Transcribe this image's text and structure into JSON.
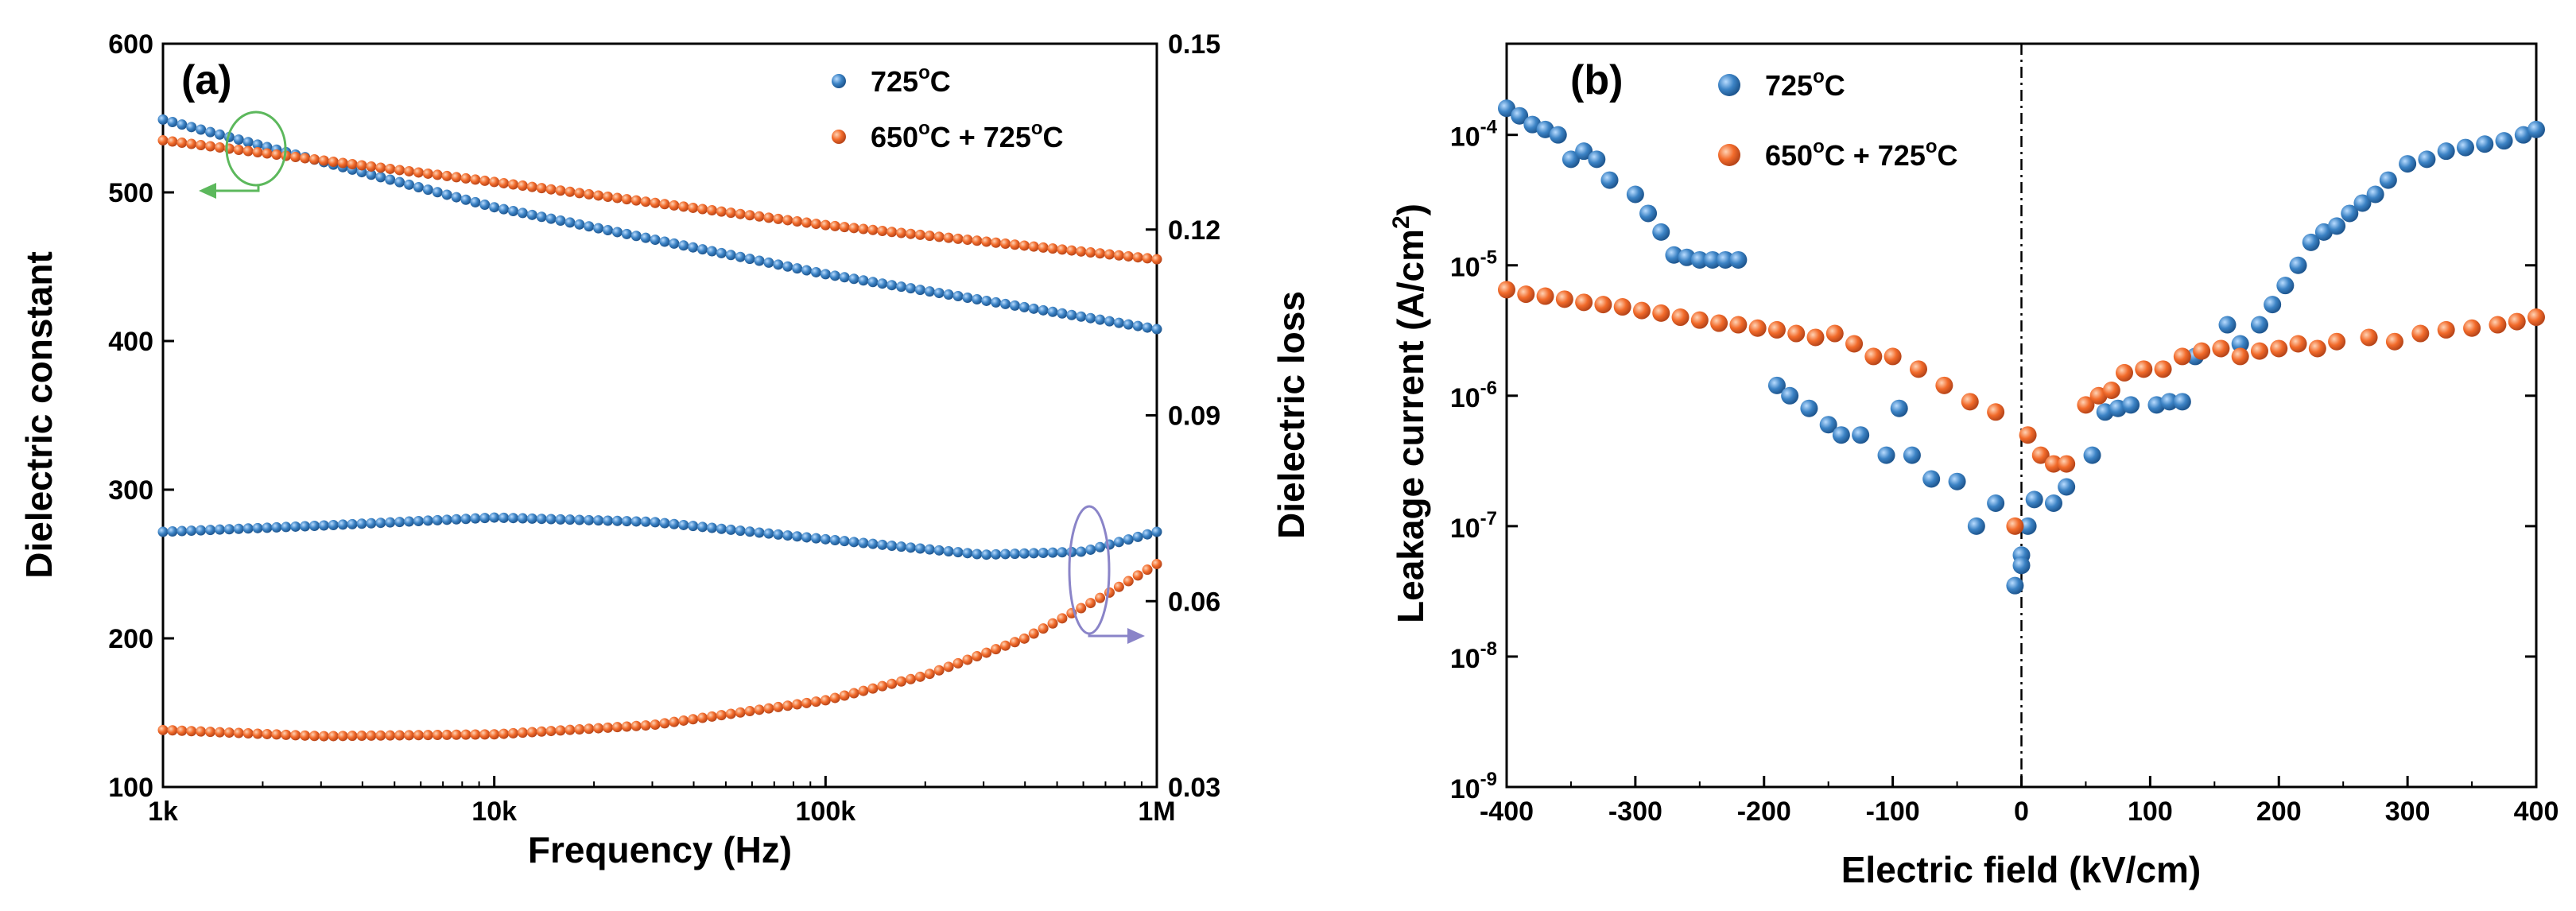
{
  "chart_data": [
    {
      "type": "scatter",
      "panel_label": "(a)",
      "title": "",
      "xlabel": "Frequency (Hz)",
      "ylabel": "Dielectric constant",
      "y2label": "Dielectric loss",
      "xscale": "log",
      "xlim": [
        1000,
        1000000
      ],
      "ylim": [
        100,
        600
      ],
      "y2lim": [
        0.03,
        0.15
      ],
      "x_ticks": [
        {
          "value": 1000,
          "label": "1k"
        },
        {
          "value": 10000,
          "label": "10k"
        },
        {
          "value": 100000,
          "label": "100k"
        },
        {
          "value": 1000000,
          "label": "1M"
        }
      ],
      "y_ticks": [
        {
          "value": 100,
          "label": "100"
        },
        {
          "value": 200,
          "label": "200"
        },
        {
          "value": 300,
          "label": "300"
        },
        {
          "value": 400,
          "label": "400"
        },
        {
          "value": 500,
          "label": "500"
        },
        {
          "value": 600,
          "label": "600"
        }
      ],
      "y2_ticks": [
        {
          "value": 0.03,
          "label": "0.03"
        },
        {
          "value": 0.06,
          "label": "0.06"
        },
        {
          "value": 0.09,
          "label": "0.09"
        },
        {
          "value": 0.12,
          "label": "0.12"
        },
        {
          "value": 0.15,
          "label": "0.15"
        }
      ],
      "legend": [
        {
          "name": "725",
          "degree": "o",
          "suffix": "C",
          "color": "#3c83c5"
        },
        {
          "name": "650",
          "degree": "o",
          "suffix": "C + 725",
          "degree2": "o",
          "suffix2": "C",
          "color": "#f26b2b"
        }
      ],
      "legend_position": "top-right",
      "series": [
        {
          "name": "725°C dielectric constant",
          "axis": "left",
          "color": "#3c83c5",
          "x": [
            1000,
            10000,
            100000,
            1000000
          ],
          "y": [
            549,
            490,
            445,
            408
          ]
        },
        {
          "name": "650°C + 725°C dielectric constant",
          "axis": "left",
          "color": "#f26b2b",
          "x": [
            1000,
            10000,
            100000,
            1000000
          ],
          "y": [
            535,
            507,
            478,
            455
          ]
        },
        {
          "name": "725°C dielectric loss",
          "axis": "right",
          "color": "#3c83c5",
          "x": [
            1000,
            3000,
            10000,
            30000,
            100000,
            300000,
            600000,
            1000000
          ],
          "y": [
            0.0712,
            0.0722,
            0.0735,
            0.0728,
            0.07,
            0.0675,
            0.068,
            0.0712
          ]
        },
        {
          "name": "650°C + 725°C dielectric loss",
          "axis": "right",
          "color": "#f26b2b",
          "x": [
            1000,
            3000,
            10000,
            30000,
            100000,
            200000,
            400000,
            700000,
            1000000
          ],
          "y": [
            0.0392,
            0.0382,
            0.0385,
            0.04,
            0.044,
            0.048,
            0.054,
            0.061,
            0.066
          ]
        }
      ],
      "markers": [
        {
          "name": "left-axis-marker",
          "color": "#5cb85c",
          "target_axis": "left"
        },
        {
          "name": "right-axis-marker",
          "color": "#8a84c8",
          "target_axis": "right"
        }
      ]
    },
    {
      "type": "scatter",
      "panel_label": "(b)",
      "title": "",
      "xlabel": "Electric field (kV/cm)",
      "ylabel": "Leakage current (A/cm",
      "ylabel_sup": "2",
      "ylabel_end": ")",
      "xscale": "linear",
      "yscale": "log",
      "xlim": [
        -400,
        400
      ],
      "ylim": [
        1e-09,
        0.0005
      ],
      "x_ticks": [
        {
          "value": -400,
          "label": "-400"
        },
        {
          "value": -300,
          "label": "-300"
        },
        {
          "value": -200,
          "label": "-200"
        },
        {
          "value": -100,
          "label": "-100"
        },
        {
          "value": 0,
          "label": "0"
        },
        {
          "value": 100,
          "label": "100"
        },
        {
          "value": 200,
          "label": "200"
        },
        {
          "value": 300,
          "label": "300"
        },
        {
          "value": 400,
          "label": "400"
        }
      ],
      "y_ticks": [
        {
          "value": 1e-09,
          "base": "10",
          "exp": "-9"
        },
        {
          "value": 1e-08,
          "base": "10",
          "exp": "-8"
        },
        {
          "value": 1e-07,
          "base": "10",
          "exp": "-7"
        },
        {
          "value": 1e-06,
          "base": "10",
          "exp": "-6"
        },
        {
          "value": 1e-05,
          "base": "10",
          "exp": "-5"
        },
        {
          "value": 0.0001,
          "base": "10",
          "exp": "-4"
        }
      ],
      "legend": [
        {
          "name": "725",
          "degree": "o",
          "suffix": "C",
          "color": "#3c83c5"
        },
        {
          "name": "650",
          "degree": "o",
          "suffix": "C + 725",
          "degree2": "o",
          "suffix2": "C",
          "color": "#f26b2b"
        }
      ],
      "legend_position": "top-left",
      "zero_line": true,
      "series": [
        {
          "name": "725°C",
          "color": "#3c83c5",
          "x": [
            -400,
            -390,
            -380,
            -370,
            -360,
            -350,
            -340,
            -330,
            -320,
            -300,
            -290,
            -280,
            -270,
            -260,
            -250,
            -240,
            -230,
            -220,
            -190,
            -180,
            -165,
            -150,
            -140,
            -125,
            -105,
            -95,
            -85,
            -70,
            -50,
            -35,
            -20,
            -5,
            0,
            0,
            5,
            10,
            25
          ],
          "y": [
            0.00016,
            0.00014,
            0.00012,
            0.00011,
            0.0001,
            6.5e-05,
            7.5e-05,
            6.5e-05,
            4.5e-05,
            3.5e-05,
            2.5e-05,
            1.8e-05,
            1.2e-05,
            1.15e-05,
            1.1e-05,
            1.1e-05,
            1.1e-05,
            1.1e-05,
            1.2e-06,
            1e-06,
            8e-07,
            6e-07,
            5e-07,
            5e-07,
            3.5e-07,
            8e-07,
            3.5e-07,
            2.3e-07,
            2.2e-07,
            1e-07,
            1.5e-07,
            3.5e-08,
            6e-08,
            5e-08,
            1e-07,
            1.6e-07,
            1.5e-07
          ],
          "x2": [
            35,
            55,
            65,
            75,
            85,
            105,
            115,
            125,
            135,
            160,
            170,
            185,
            195,
            205,
            215,
            225,
            235,
            245,
            255,
            265,
            275,
            285,
            300,
            315,
            330,
            345,
            360,
            375,
            390,
            400
          ],
          "y2": [
            2e-07,
            3.5e-07,
            7.5e-07,
            8e-07,
            8.5e-07,
            8.5e-07,
            9e-07,
            9e-07,
            2e-06,
            3.5e-06,
            2.5e-06,
            3.5e-06,
            5e-06,
            7e-06,
            1e-05,
            1.5e-05,
            1.8e-05,
            2e-05,
            2.5e-05,
            3e-05,
            3.5e-05,
            4.5e-05,
            6e-05,
            6.5e-05,
            7.5e-05,
            8e-05,
            8.5e-05,
            9e-05,
            0.0001,
            0.00011
          ]
        },
        {
          "name": "650°C + 725°C",
          "color": "#f26b2b",
          "x": [
            -400,
            -385,
            -370,
            -355,
            -340,
            -325,
            -310,
            -295,
            -280,
            -265,
            -250,
            -235,
            -220,
            -205,
            -190,
            -175,
            -160,
            -145,
            -130,
            -115,
            -100,
            -80,
            -60,
            -40,
            -20,
            -5,
            5,
            15,
            25,
            35,
            50,
            60,
            70,
            80,
            95,
            110,
            125,
            140,
            155,
            170,
            185,
            200,
            215,
            230,
            245,
            270,
            290,
            310,
            330,
            350,
            370,
            385,
            400
          ],
          "y": [
            6.5e-06,
            6e-06,
            5.8e-06,
            5.5e-06,
            5.2e-06,
            5e-06,
            4.8e-06,
            4.5e-06,
            4.3e-06,
            4e-06,
            3.8e-06,
            3.6e-06,
            3.5e-06,
            3.3e-06,
            3.2e-06,
            3e-06,
            2.8e-06,
            3e-06,
            2.5e-06,
            2e-06,
            2e-06,
            1.6e-06,
            1.2e-06,
            9e-07,
            7.5e-07,
            1e-07,
            5e-07,
            3.5e-07,
            3e-07,
            3e-07,
            8.5e-07,
            1e-06,
            1.1e-06,
            1.5e-06,
            1.6e-06,
            1.6e-06,
            2e-06,
            2.2e-06,
            2.3e-06,
            2e-06,
            2.2e-06,
            2.3e-06,
            2.5e-06,
            2.3e-06,
            2.6e-06,
            2.8e-06,
            2.6e-06,
            3e-06,
            3.2e-06,
            3.3e-06,
            3.5e-06,
            3.7e-06,
            4e-06
          ]
        }
      ]
    }
  ]
}
